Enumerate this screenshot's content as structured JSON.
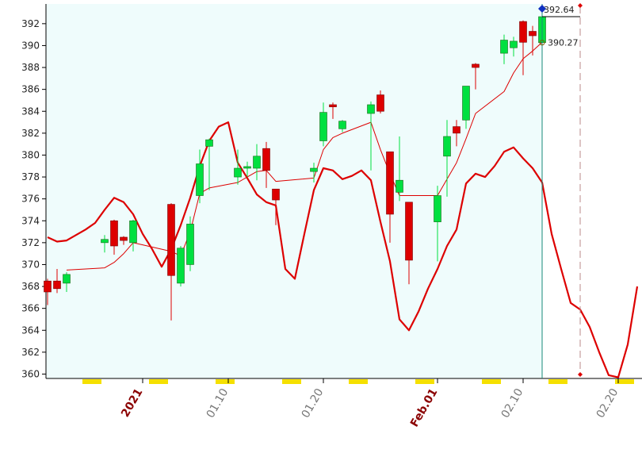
{
  "chart_data": {
    "type": "candlestick",
    "x": [
      -10,
      -9,
      -8,
      -4,
      -3,
      -2,
      -1,
      3,
      4,
      5,
      6,
      7,
      10,
      11,
      12,
      13,
      14,
      18,
      19,
      20,
      21,
      24,
      25,
      26,
      27,
      28,
      31,
      32,
      33,
      34,
      35,
      38,
      39,
      40,
      41,
      42
    ],
    "open": [
      368.5,
      368.5,
      368.3,
      372.0,
      374.0,
      372.5,
      372.0,
      375.5,
      368.3,
      370.0,
      376.3,
      380.8,
      378.0,
      378.8,
      378.8,
      380.6,
      376.9,
      378.5,
      381.3,
      384.6,
      382.4,
      383.8,
      385.5,
      380.3,
      376.6,
      375.7,
      373.9,
      379.9,
      382.6,
      383.2,
      388.3,
      389.3,
      389.8,
      392.2,
      391.3,
      390.27
    ],
    "high": [
      368.7,
      369.6,
      369.3,
      372.7,
      374.1,
      372.6,
      374.1,
      375.6,
      371.7,
      374.4,
      380.5,
      381.5,
      380.5,
      379.4,
      381.0,
      381.2,
      376.9,
      379.3,
      384.8,
      384.8,
      383.2,
      384.9,
      385.9,
      380.3,
      381.7,
      375.7,
      377.2,
      383.2,
      383.2,
      386.3,
      388.4,
      391.0,
      390.8,
      392.3,
      391.8,
      392.64
    ],
    "low": [
      366.3,
      367.4,
      367.5,
      371.1,
      370.9,
      371.8,
      371.2,
      364.9,
      368.0,
      369.4,
      375.6,
      376.8,
      377.3,
      378.0,
      377.7,
      377.0,
      373.6,
      377.5,
      380.8,
      383.3,
      382.1,
      378.6,
      383.8,
      372.0,
      375.8,
      368.2,
      370.3,
      376.2,
      380.8,
      382.4,
      386.0,
      388.3,
      389.0,
      387.3,
      389.1,
      389.6
    ],
    "close": [
      367.5,
      367.8,
      369.1,
      372.3,
      371.7,
      372.2,
      374.0,
      369.0,
      371.5,
      373.7,
      379.2,
      381.4,
      378.8,
      378.95,
      379.9,
      378.6,
      375.9,
      378.8,
      383.9,
      384.4,
      383.1,
      384.6,
      384.0,
      374.6,
      377.7,
      370.4,
      376.3,
      381.7,
      382.0,
      386.3,
      388.0,
      390.5,
      390.4,
      390.3,
      390.9,
      392.64
    ],
    "up_color": "#00e040",
    "down_color": "#dd0000",
    "lines": [
      {
        "color": "#dd0000",
        "width": 1,
        "x": [
          -8,
          -4,
          -3,
          -2,
          -1,
          3,
          4,
          5,
          6,
          7,
          10,
          11,
          12,
          13,
          14,
          18,
          19,
          20,
          21,
          24,
          25,
          26,
          27,
          28,
          31,
          32,
          33,
          34,
          35,
          38,
          39,
          40,
          41,
          42
        ],
        "values": [
          369.5,
          369.7,
          370.2,
          371.0,
          372.0,
          371.2,
          370.8,
          373.0,
          376.5,
          377.0,
          377.5,
          378.0,
          378.5,
          378.6,
          377.6,
          377.9,
          380.5,
          381.6,
          382.0,
          383.0,
          380.5,
          378.3,
          376.3,
          376.3,
          376.3,
          377.8,
          379.3,
          381.5,
          383.8,
          385.8,
          387.5,
          388.8,
          389.5,
          390.3
        ]
      },
      {
        "color": "#dd0000",
        "width": 2.2,
        "x": [
          -10,
          -9,
          -8,
          -7,
          -6,
          -5,
          -4,
          -3,
          -2,
          -1,
          0,
          1,
          2,
          3,
          4,
          5,
          6,
          7,
          8,
          9,
          10,
          11,
          12,
          13,
          14,
          15,
          16,
          17,
          18,
          19,
          20,
          21,
          22,
          23,
          24,
          25,
          26,
          27,
          28,
          29,
          30,
          31,
          32,
          33,
          34,
          35,
          36,
          37,
          38,
          39,
          40,
          41,
          42,
          43,
          44,
          45,
          46,
          47,
          48,
          49,
          50,
          51,
          52
        ],
        "values": [
          372.5,
          372.1,
          372.2,
          372.7,
          373.2,
          373.8,
          375.0,
          376.1,
          375.7,
          374.6,
          372.8,
          371.4,
          369.8,
          371.4,
          373.6,
          376.1,
          379.0,
          381.3,
          382.6,
          383.0,
          379.3,
          377.9,
          376.4,
          375.7,
          375.4,
          369.6,
          368.7,
          372.8,
          376.8,
          378.8,
          378.6,
          377.8,
          378.1,
          378.6,
          377.7,
          373.9,
          370.3,
          365.0,
          364.0,
          365.7,
          367.8,
          369.6,
          371.7,
          373.2,
          377.4,
          378.3,
          378.0,
          379.0,
          380.3,
          380.7,
          379.7,
          378.8,
          377.5,
          372.8,
          369.6,
          366.5,
          365.9,
          364.3,
          362.0,
          359.9,
          359.7,
          362.7,
          368.0
        ]
      }
    ],
    "price_labels": [
      392.64,
      390.27
    ],
    "forecast_x": 46,
    "xlim": [
      -10.5,
      52.5
    ],
    "xticks": [
      {
        "value": 0,
        "label": "2021"
      },
      {
        "value": 9,
        "label": "01.10"
      },
      {
        "value": 19,
        "label": "01.20"
      },
      {
        "value": 31,
        "label": "Feb.01"
      },
      {
        "value": 40,
        "label": "02.10"
      },
      {
        "value": 50,
        "label": "02.20"
      }
    ],
    "ylim": [
      359.6,
      393.8
    ],
    "yticks": [
      360,
      362,
      364,
      366,
      368,
      370,
      372,
      374,
      376,
      378,
      380,
      382,
      384,
      386,
      388,
      390,
      392
    ]
  }
}
